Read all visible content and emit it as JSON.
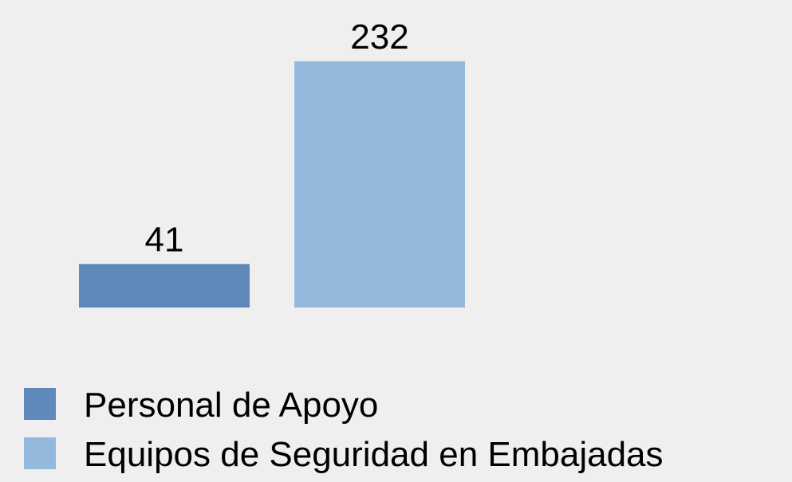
{
  "chart_data": {
    "type": "bar",
    "series": [
      {
        "name": "Personal de Apoyo",
        "color": "#5f88bb",
        "values": [
          41
        ]
      },
      {
        "name": "Equipos de Seguridad en Embajadas",
        "color": "#95b9dc",
        "values": [
          232
        ]
      }
    ],
    "legend": "bottom-left"
  }
}
